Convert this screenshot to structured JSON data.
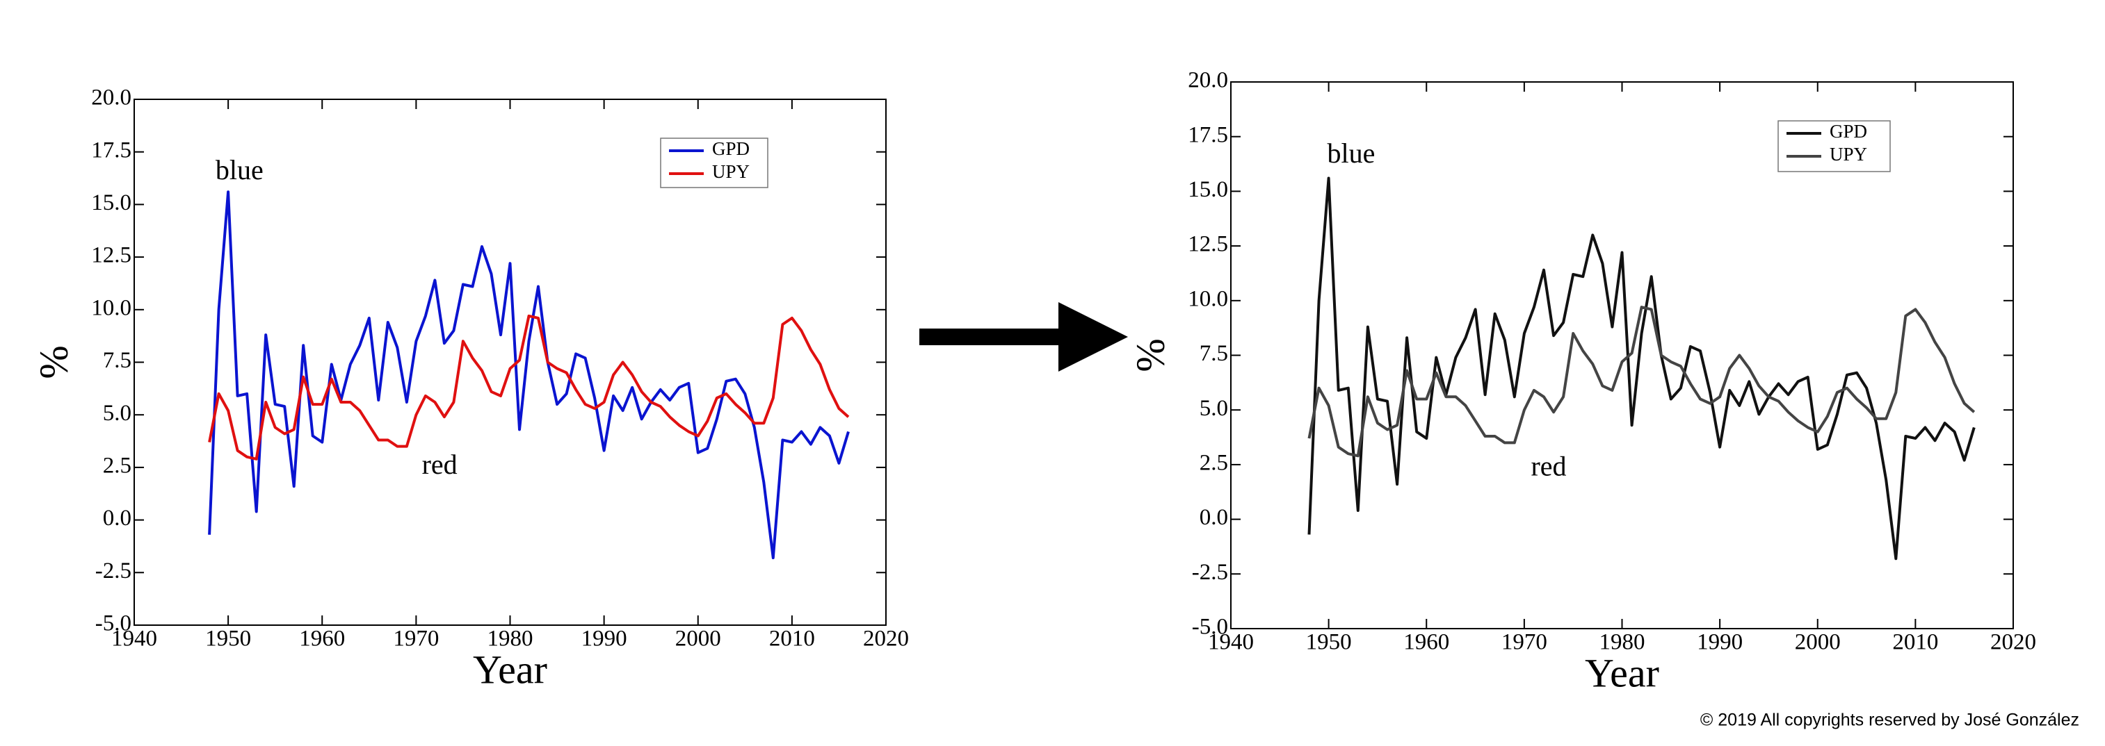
{
  "chart_data": [
    {
      "type": "line",
      "xlabel": "Year",
      "ylabel": "%",
      "x": [
        1948,
        1949,
        1950,
        1951,
        1952,
        1953,
        1954,
        1955,
        1956,
        1957,
        1958,
        1959,
        1960,
        1961,
        1962,
        1963,
        1964,
        1965,
        1966,
        1967,
        1968,
        1969,
        1970,
        1971,
        1972,
        1973,
        1974,
        1975,
        1976,
        1977,
        1978,
        1979,
        1980,
        1981,
        1982,
        1983,
        1984,
        1985,
        1986,
        1987,
        1988,
        1989,
        1990,
        1991,
        1992,
        1993,
        1994,
        1995,
        1996,
        1997,
        1998,
        1999,
        2000,
        2001,
        2002,
        2003,
        2004,
        2005,
        2006,
        2007,
        2008,
        2009,
        2010,
        2011,
        2012,
        2013,
        2014,
        2015,
        2016
      ],
      "series": [
        {
          "name": "GPD",
          "color": "#0a14d0",
          "values": [
            -0.7,
            10.0,
            15.6,
            5.9,
            6.0,
            0.4,
            8.8,
            5.5,
            5.4,
            1.6,
            8.3,
            4.0,
            3.7,
            7.4,
            5.7,
            7.4,
            8.3,
            9.6,
            5.7,
            9.4,
            8.2,
            5.6,
            8.5,
            9.7,
            11.4,
            8.4,
            9.0,
            11.2,
            11.1,
            13.0,
            11.7,
            8.8,
            12.2,
            4.3,
            8.5,
            11.1,
            7.5,
            5.5,
            6.0,
            7.9,
            7.7,
            5.8,
            3.3,
            5.9,
            5.2,
            6.3,
            4.8,
            5.6,
            6.2,
            5.7,
            6.3,
            6.5,
            3.2,
            3.4,
            4.8,
            6.6,
            6.7,
            6.0,
            4.4,
            1.8,
            -1.8,
            3.8,
            3.7,
            4.2,
            3.6,
            4.4,
            4.0,
            2.7,
            4.2
          ]
        },
        {
          "name": "UPY",
          "color": "#e01010",
          "values": [
            3.7,
            6.0,
            5.2,
            3.3,
            3.0,
            2.9,
            5.6,
            4.4,
            4.1,
            4.3,
            6.8,
            5.5,
            5.5,
            6.7,
            5.6,
            5.6,
            5.2,
            4.5,
            3.8,
            3.8,
            3.5,
            3.5,
            5.0,
            5.9,
            5.6,
            4.9,
            5.6,
            8.5,
            7.7,
            7.1,
            6.1,
            5.9,
            7.2,
            7.6,
            9.7,
            9.6,
            7.5,
            7.2,
            7.0,
            6.2,
            5.5,
            5.3,
            5.6,
            6.9,
            7.5,
            6.9,
            6.1,
            5.6,
            5.4,
            4.9,
            4.5,
            4.2,
            4.0,
            4.7,
            5.8,
            6.0,
            5.5,
            5.1,
            4.6,
            4.6,
            5.8,
            9.3,
            9.6,
            9.0,
            8.1,
            7.4,
            6.2,
            5.3,
            4.9
          ]
        }
      ],
      "annotations": [
        "blue",
        "red"
      ],
      "xlim": [
        1940,
        2020
      ],
      "xticks": [
        1940,
        1950,
        1960,
        1970,
        1980,
        1990,
        2000,
        2010,
        2020
      ],
      "ylim": [
        -5,
        20
      ],
      "yticks": [
        {
          "value": -5,
          "label": "-5.0"
        },
        {
          "value": -2.5,
          "label": "-2.5"
        },
        {
          "value": 0,
          "label": "0.0"
        },
        {
          "value": 2.5,
          "label": "2.5"
        },
        {
          "value": 5,
          "label": "5.0"
        },
        {
          "value": 7.5,
          "label": "7.5"
        },
        {
          "value": 10,
          "label": "10.0"
        },
        {
          "value": 12.5,
          "label": "12.5"
        },
        {
          "value": 15,
          "label": "15.0"
        },
        {
          "value": 17.5,
          "label": "17.5"
        },
        {
          "value": 20,
          "label": "20.0"
        }
      ],
      "legend": "upper right"
    },
    {
      "type": "line",
      "xlabel": "Year",
      "ylabel": "%",
      "x": [
        1948,
        1949,
        1950,
        1951,
        1952,
        1953,
        1954,
        1955,
        1956,
        1957,
        1958,
        1959,
        1960,
        1961,
        1962,
        1963,
        1964,
        1965,
        1966,
        1967,
        1968,
        1969,
        1970,
        1971,
        1972,
        1973,
        1974,
        1975,
        1976,
        1977,
        1978,
        1979,
        1980,
        1981,
        1982,
        1983,
        1984,
        1985,
        1986,
        1987,
        1988,
        1989,
        1990,
        1991,
        1992,
        1993,
        1994,
        1995,
        1996,
        1997,
        1998,
        1999,
        2000,
        2001,
        2002,
        2003,
        2004,
        2005,
        2006,
        2007,
        2008,
        2009,
        2010,
        2011,
        2012,
        2013,
        2014,
        2015,
        2016
      ],
      "series": [
        {
          "name": "GPD",
          "color": "#111111",
          "values": [
            -0.7,
            10.0,
            15.6,
            5.9,
            6.0,
            0.4,
            8.8,
            5.5,
            5.4,
            1.6,
            8.3,
            4.0,
            3.7,
            7.4,
            5.7,
            7.4,
            8.3,
            9.6,
            5.7,
            9.4,
            8.2,
            5.6,
            8.5,
            9.7,
            11.4,
            8.4,
            9.0,
            11.2,
            11.1,
            13.0,
            11.7,
            8.8,
            12.2,
            4.3,
            8.5,
            11.1,
            7.5,
            5.5,
            6.0,
            7.9,
            7.7,
            5.8,
            3.3,
            5.9,
            5.2,
            6.3,
            4.8,
            5.6,
            6.2,
            5.7,
            6.3,
            6.5,
            3.2,
            3.4,
            4.8,
            6.6,
            6.7,
            6.0,
            4.4,
            1.8,
            -1.8,
            3.8,
            3.7,
            4.2,
            3.6,
            4.4,
            4.0,
            2.7,
            4.2
          ]
        },
        {
          "name": "UPY",
          "color": "#444444",
          "values": [
            3.7,
            6.0,
            5.2,
            3.3,
            3.0,
            2.9,
            5.6,
            4.4,
            4.1,
            4.3,
            6.8,
            5.5,
            5.5,
            6.7,
            5.6,
            5.6,
            5.2,
            4.5,
            3.8,
            3.8,
            3.5,
            3.5,
            5.0,
            5.9,
            5.6,
            4.9,
            5.6,
            8.5,
            7.7,
            7.1,
            6.1,
            5.9,
            7.2,
            7.6,
            9.7,
            9.6,
            7.5,
            7.2,
            7.0,
            6.2,
            5.5,
            5.3,
            5.6,
            6.9,
            7.5,
            6.9,
            6.1,
            5.6,
            5.4,
            4.9,
            4.5,
            4.2,
            4.0,
            4.7,
            5.8,
            6.0,
            5.5,
            5.1,
            4.6,
            4.6,
            5.8,
            9.3,
            9.6,
            9.0,
            8.1,
            7.4,
            6.2,
            5.3,
            4.9
          ]
        }
      ],
      "annotations": [
        "blue",
        "red"
      ],
      "xlim": [
        1940,
        2020
      ],
      "xticks": [
        1940,
        1950,
        1960,
        1970,
        1980,
        1990,
        2000,
        2010,
        2020
      ],
      "ylim": [
        -5,
        20
      ],
      "yticks": [
        {
          "value": -5,
          "label": "-5.0"
        },
        {
          "value": -2.5,
          "label": "-2.5"
        },
        {
          "value": 0,
          "label": "0.0"
        },
        {
          "value": 2.5,
          "label": "2.5"
        },
        {
          "value": 5,
          "label": "5.0"
        },
        {
          "value": 7.5,
          "label": "7.5"
        },
        {
          "value": 10,
          "label": "10.0"
        },
        {
          "value": 12.5,
          "label": "12.5"
        },
        {
          "value": 15,
          "label": "15.0"
        },
        {
          "value": 17.5,
          "label": "17.5"
        },
        {
          "value": 20,
          "label": "20.0"
        }
      ],
      "legend": "upper right"
    }
  ],
  "footer": "© 2019 All copyrights reserved by José González"
}
